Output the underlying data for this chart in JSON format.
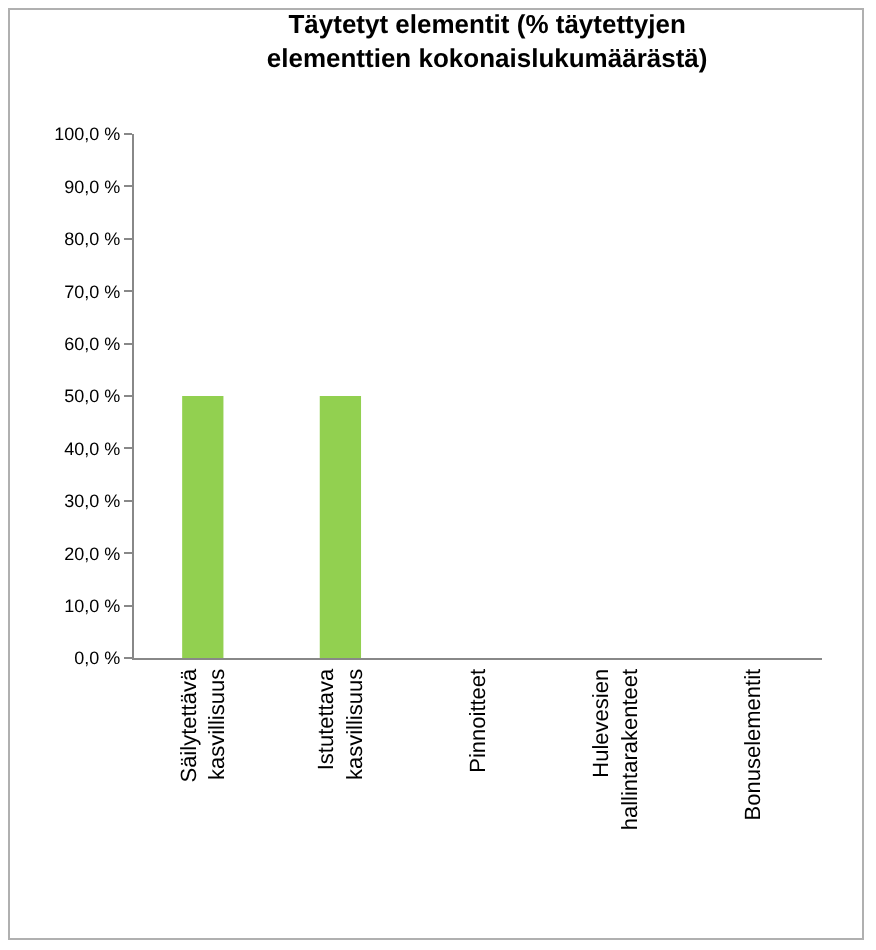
{
  "chart_data": {
    "type": "bar",
    "title": "Täytetyt elementit (% täytettyjen\nelementtien kokonaislukumäärästä)",
    "categories": [
      "Säilytettävä\nkasvillisuus",
      "Istutettava\nkasvillisuus",
      "Pinnoitteet",
      "Hulevesien\nhallintarakenteet",
      "Bonuselementit"
    ],
    "values": [
      50,
      50,
      0,
      0,
      0
    ],
    "color": "#92d050",
    "ylim": [
      0,
      100
    ],
    "yticks": [
      {
        "value": 0,
        "label": "0,0 %"
      },
      {
        "value": 10,
        "label": "10,0 %"
      },
      {
        "value": 20,
        "label": "20,0 %"
      },
      {
        "value": 30,
        "label": "30,0 %"
      },
      {
        "value": 40,
        "label": "40,0 %"
      },
      {
        "value": 50,
        "label": "50,0 %"
      },
      {
        "value": 60,
        "label": "60,0 %"
      },
      {
        "value": 70,
        "label": "70,0 %"
      },
      {
        "value": 80,
        "label": "80,0 %"
      },
      {
        "value": 90,
        "label": "90,0 %"
      },
      {
        "value": 100,
        "label": "100,0 %"
      }
    ],
    "grid": false
  }
}
